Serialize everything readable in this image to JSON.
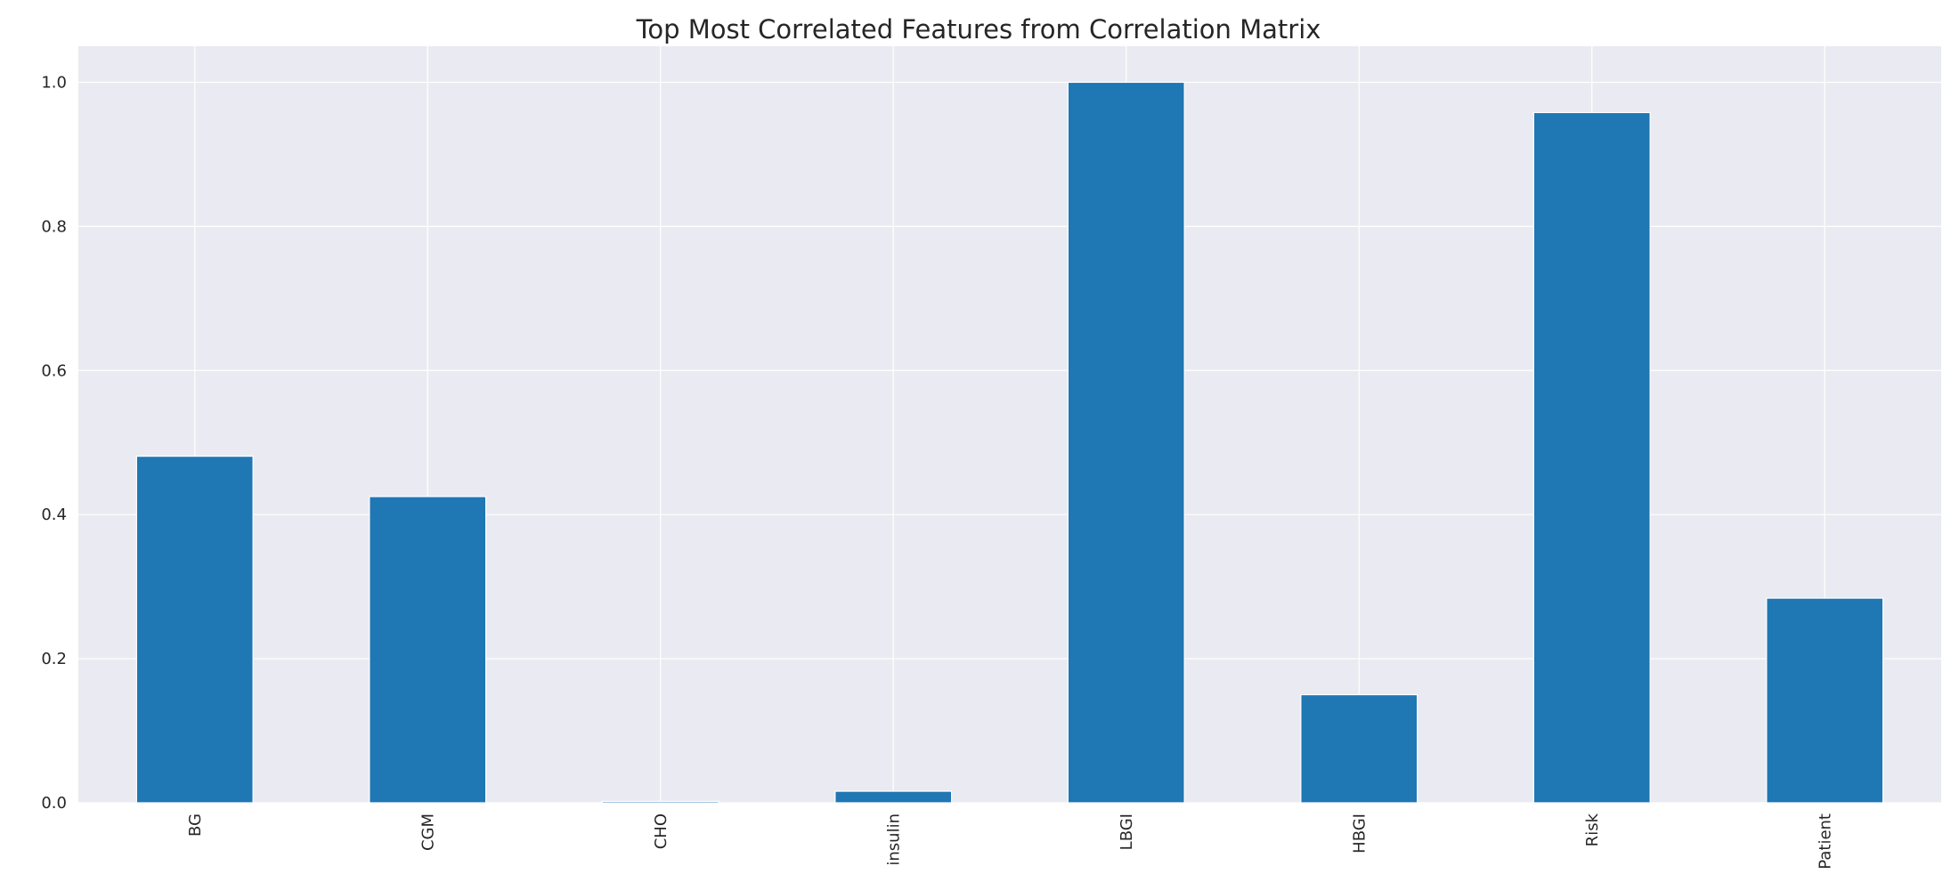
{
  "chart_data": {
    "type": "bar",
    "title": "Top Most Correlated Features from Correlation Matrix",
    "xlabel": "",
    "ylabel": "",
    "categories": [
      "BG",
      "CGM",
      "CHO",
      "insulin",
      "LBGI",
      "HBGI",
      "Risk",
      "Patient"
    ],
    "values": [
      0.481,
      0.425,
      0.002,
      0.016,
      1.0,
      0.15,
      0.958,
      0.284
    ],
    "ylim": [
      0,
      1.05
    ],
    "yticks": [
      0.0,
      0.2,
      0.4,
      0.6,
      0.8,
      1.0
    ],
    "ytick_labels": [
      "0.0",
      "0.2",
      "0.4",
      "0.6",
      "0.8",
      "1.0"
    ],
    "grid": true,
    "bar_color": "#1f77b4",
    "plot_background": "#eaeaf2",
    "grid_color": "#ffffff"
  }
}
